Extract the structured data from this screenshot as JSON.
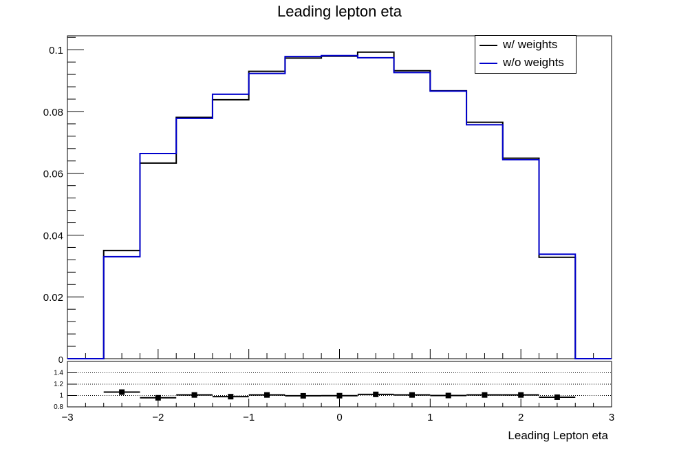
{
  "chart_data": [
    {
      "type": "line",
      "subtype": "step-histogram",
      "title": "Leading lepton eta",
      "xlabel": "",
      "ylabel": "",
      "xlim": [
        -3,
        3
      ],
      "ylim": [
        0,
        0.1045
      ],
      "y_ticks": [
        "0.02",
        "0.04",
        "0.06",
        "0.08",
        "0.1"
      ],
      "y_zero_label": "0",
      "bin_edges": [
        -3.0,
        -2.6,
        -2.2,
        -1.8,
        -1.4,
        -1.0,
        -0.6,
        -0.2,
        0.2,
        0.6,
        1.0,
        1.4,
        1.8,
        2.2,
        2.6,
        3.0
      ],
      "series": [
        {
          "name": "w/ weights",
          "color": "#000000",
          "values": [
            0.0,
            0.035,
            0.0633,
            0.0781,
            0.0838,
            0.093,
            0.0973,
            0.0979,
            0.0992,
            0.0932,
            0.0867,
            0.0765,
            0.0649,
            0.0328,
            0.0
          ]
        },
        {
          "name": "w/o weights",
          "color": "#0000cc",
          "values": [
            0.0,
            0.033,
            0.0664,
            0.0778,
            0.0856,
            0.0923,
            0.0978,
            0.0981,
            0.0974,
            0.0926,
            0.0866,
            0.0757,
            0.0644,
            0.0338,
            0.0
          ]
        }
      ],
      "legend": {
        "position": "top-right",
        "entries": [
          "w/ weights",
          "w/o weights"
        ]
      },
      "grid": false
    },
    {
      "type": "scatter",
      "subtype": "ratio-panel",
      "xlabel": "Leading Lepton eta",
      "ylabel": "",
      "xlim": [
        -3,
        3
      ],
      "ylim": [
        0.8,
        1.6
      ],
      "y_ticks": [
        "0.8",
        "1",
        "1.2",
        "1.4"
      ],
      "x_ticks": [
        "−3",
        "−2",
        "−1",
        "0",
        "1",
        "2",
        "3"
      ],
      "horizontal_grid": true,
      "points": {
        "x": [
          -2.4,
          -2.0,
          -1.6,
          -1.2,
          -0.8,
          -0.4,
          0.0,
          0.4,
          0.8,
          1.2,
          1.6,
          2.0,
          2.4
        ],
        "y": [
          1.06,
          0.96,
          1.01,
          0.98,
          1.01,
          0.995,
          0.997,
          1.02,
          1.01,
          1.0,
          1.01,
          1.01,
          0.97
        ],
        "xerr": 0.2,
        "color": "#000000",
        "marker": "square"
      }
    }
  ]
}
